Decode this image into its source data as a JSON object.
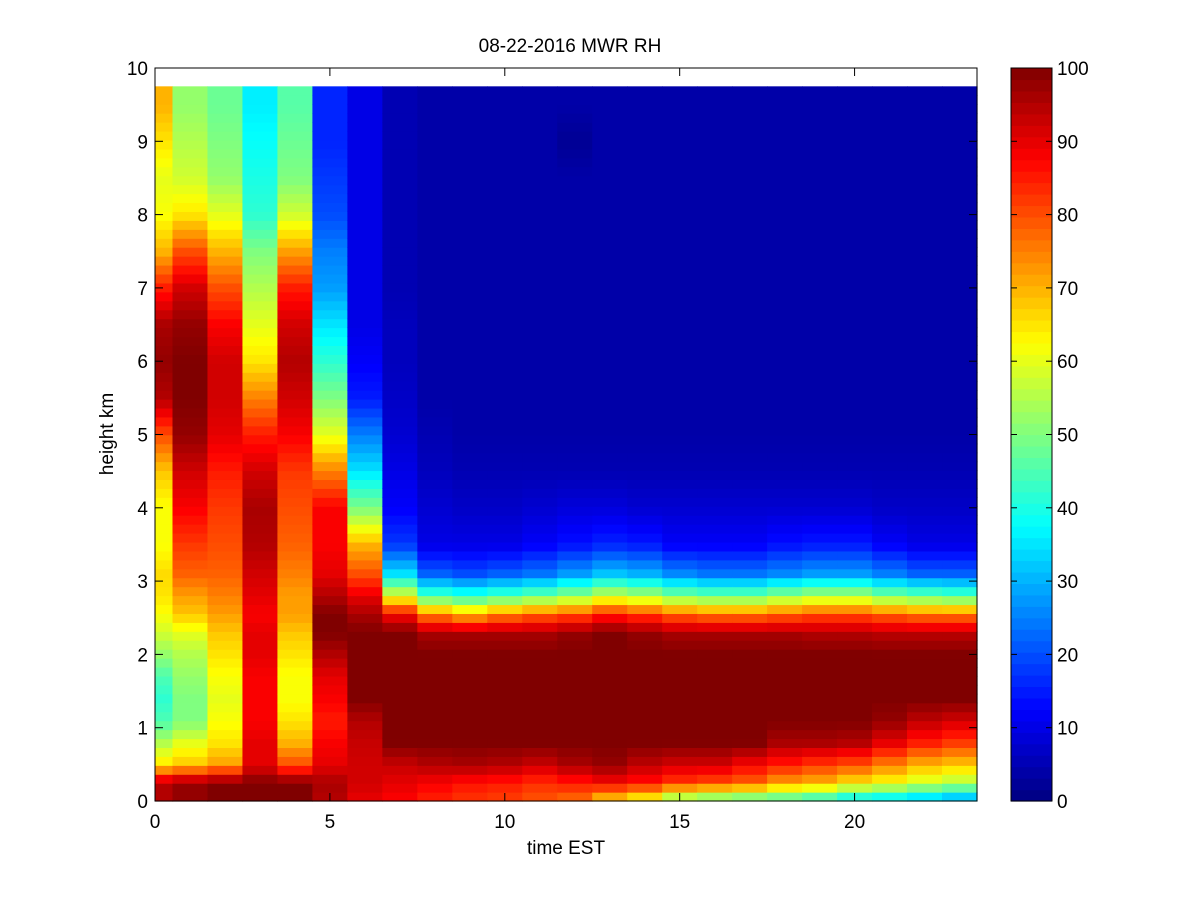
{
  "chart_data": {
    "type": "heatmap",
    "title": "08-22-2016 MWR RH",
    "xlabel": "time EST",
    "ylabel": "height km",
    "xlim": [
      0,
      23.5
    ],
    "ylim": [
      0,
      10
    ],
    "x_ticks": [
      0,
      5,
      10,
      15,
      20
    ],
    "y_ticks": [
      0,
      1,
      2,
      3,
      4,
      5,
      6,
      7,
      8,
      9,
      10
    ],
    "colorbar": {
      "colormap": "jet",
      "clim": [
        0,
        100
      ],
      "ticks": [
        0,
        10,
        20,
        30,
        40,
        50,
        60,
        70,
        80,
        90,
        100
      ]
    },
    "time_hours": [
      0.0,
      1.0,
      2.0,
      3.0,
      4.0,
      5.0,
      6.0,
      7.0,
      8.0,
      9.0,
      10.0,
      11.0,
      12.0,
      13.0,
      14.0,
      15.0,
      16.0,
      17.0,
      18.0,
      19.0,
      20.0,
      21.0,
      22.0,
      23.0
    ],
    "height_km": [
      0.05,
      0.25,
      0.5,
      0.8,
      1.1,
      1.4,
      1.7,
      2.0,
      2.3,
      2.55,
      2.8,
      3.1,
      3.5,
      4.0,
      4.5,
      5.0,
      5.5,
      6.0,
      6.5,
      7.0,
      7.5,
      8.0,
      8.5,
      9.0,
      9.5
    ],
    "rh_percent": [
      [
        95,
        98,
        100,
        100,
        100,
        95,
        90,
        88,
        85,
        83,
        82,
        80,
        78,
        70,
        65,
        55,
        52,
        50,
        48,
        45,
        40,
        38,
        35,
        32
      ],
      [
        95,
        98,
        100,
        100,
        100,
        96,
        92,
        90,
        88,
        86,
        85,
        83,
        85,
        88,
        86,
        82,
        80,
        78,
        72,
        70,
        65,
        62,
        58,
        55
      ],
      [
        65,
        68,
        72,
        90,
        80,
        90,
        92,
        93,
        95,
        96,
        95,
        93,
        96,
        98,
        94,
        92,
        92,
        88,
        85,
        82,
        80,
        75,
        70,
        68
      ],
      [
        55,
        60,
        65,
        90,
        70,
        88,
        93,
        100,
        100,
        100,
        100,
        100,
        100,
        100,
        100,
        100,
        100,
        100,
        96,
        96,
        95,
        90,
        85,
        82
      ],
      [
        45,
        50,
        62,
        88,
        65,
        85,
        95,
        100,
        100,
        100,
        100,
        100,
        100,
        100,
        100,
        100,
        100,
        100,
        100,
        100,
        100,
        98,
        94,
        92
      ],
      [
        42,
        50,
        60,
        88,
        62,
        88,
        100,
        100,
        100,
        100,
        100,
        100,
        100,
        100,
        100,
        100,
        100,
        100,
        100,
        100,
        100,
        100,
        100,
        100
      ],
      [
        45,
        52,
        62,
        88,
        62,
        90,
        100,
        100,
        100,
        100,
        100,
        100,
        100,
        100,
        100,
        100,
        100,
        100,
        100,
        100,
        100,
        100,
        100,
        100
      ],
      [
        52,
        55,
        65,
        90,
        65,
        95,
        100,
        100,
        100,
        100,
        100,
        100,
        100,
        100,
        100,
        100,
        100,
        100,
        100,
        100,
        100,
        100,
        100,
        100
      ],
      [
        58,
        60,
        68,
        90,
        68,
        100,
        100,
        100,
        96,
        96,
        96,
        96,
        98,
        100,
        98,
        96,
        96,
        96,
        96,
        95,
        95,
        94,
        94,
        94
      ],
      [
        62,
        68,
        72,
        88,
        72,
        100,
        96,
        88,
        75,
        70,
        75,
        78,
        80,
        85,
        82,
        78,
        76,
        76,
        78,
        80,
        80,
        78,
        76,
        76
      ],
      [
        65,
        72,
        75,
        90,
        72,
        95,
        90,
        60,
        45,
        42,
        45,
        48,
        52,
        58,
        55,
        50,
        48,
        48,
        52,
        55,
        55,
        50,
        48,
        46
      ],
      [
        66,
        78,
        78,
        92,
        75,
        90,
        80,
        35,
        22,
        20,
        22,
        24,
        28,
        32,
        30,
        26,
        24,
        24,
        26,
        28,
        28,
        25,
        22,
        22
      ],
      [
        62,
        82,
        80,
        95,
        78,
        88,
        70,
        18,
        10,
        10,
        10,
        12,
        14,
        16,
        15,
        12,
        12,
        12,
        14,
        15,
        15,
        12,
        10,
        10
      ],
      [
        62,
        88,
        82,
        96,
        80,
        88,
        50,
        12,
        8,
        7,
        7,
        8,
        9,
        9,
        8,
        8,
        8,
        8,
        8,
        8,
        8,
        7,
        7,
        7
      ],
      [
        68,
        92,
        85,
        92,
        82,
        75,
        35,
        10,
        6,
        5,
        5,
        5,
        5,
        5,
        5,
        5,
        5,
        5,
        5,
        5,
        5,
        5,
        5,
        5
      ],
      [
        80,
        98,
        90,
        85,
        88,
        60,
        25,
        8,
        5,
        4,
        4,
        4,
        4,
        4,
        4,
        4,
        4,
        4,
        4,
        4,
        4,
        4,
        4,
        4
      ],
      [
        95,
        100,
        92,
        75,
        92,
        50,
        15,
        7,
        4,
        4,
        4,
        4,
        4,
        4,
        4,
        4,
        4,
        4,
        4,
        4,
        4,
        4,
        4,
        4
      ],
      [
        98,
        100,
        92,
        65,
        95,
        42,
        12,
        6,
        4,
        4,
        4,
        4,
        4,
        4,
        4,
        4,
        4,
        4,
        4,
        4,
        4,
        4,
        4,
        4
      ],
      [
        96,
        98,
        88,
        60,
        92,
        35,
        10,
        6,
        4,
        4,
        4,
        4,
        4,
        4,
        4,
        4,
        4,
        4,
        4,
        4,
        4,
        4,
        4,
        4
      ],
      [
        85,
        92,
        80,
        55,
        85,
        28,
        10,
        5,
        4,
        4,
        4,
        4,
        4,
        4,
        4,
        4,
        4,
        4,
        4,
        4,
        4,
        4,
        4,
        4
      ],
      [
        70,
        80,
        70,
        50,
        72,
        25,
        10,
        5,
        4,
        4,
        4,
        4,
        4,
        4,
        4,
        4,
        4,
        4,
        4,
        4,
        4,
        4,
        4,
        4
      ],
      [
        62,
        65,
        60,
        42,
        58,
        20,
        10,
        5,
        4,
        4,
        4,
        4,
        4,
        4,
        4,
        4,
        4,
        4,
        4,
        4,
        4,
        4,
        4,
        4
      ],
      [
        60,
        58,
        52,
        40,
        50,
        18,
        10,
        5,
        4,
        4,
        4,
        4,
        4,
        4,
        4,
        4,
        4,
        4,
        4,
        4,
        4,
        4,
        4,
        4
      ],
      [
        65,
        55,
        50,
        38,
        48,
        16,
        10,
        5,
        4,
        4,
        4,
        4,
        2,
        4,
        4,
        4,
        4,
        4,
        4,
        4,
        4,
        4,
        4,
        4
      ],
      [
        70,
        52,
        48,
        36,
        46,
        16,
        10,
        5,
        4,
        4,
        4,
        4,
        4,
        4,
        4,
        4,
        4,
        4,
        4,
        4,
        4,
        4,
        4,
        4
      ]
    ],
    "grid": false
  }
}
